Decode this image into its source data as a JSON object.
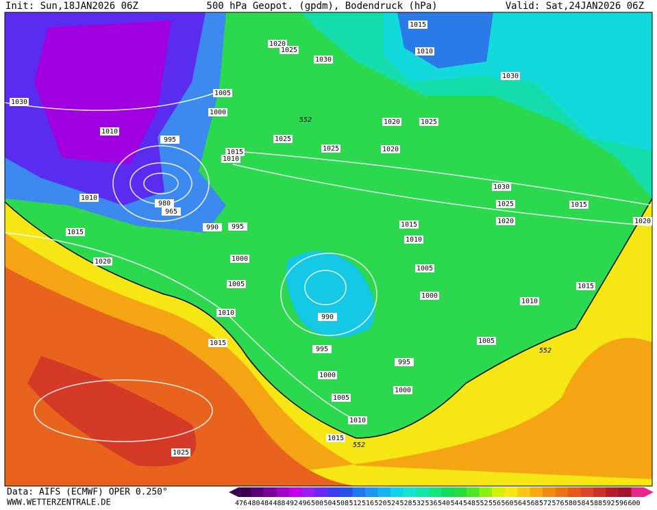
{
  "header": {
    "init": "Init: Sun,18JAN2026 06Z",
    "title": "500 hPa Geopot. (gpdm), Bodendruck (hPa)",
    "valid": "Valid: Sat,24JAN2026 06Z"
  },
  "isobar_labels": [
    "1015",
    "1020",
    "1025",
    "1010",
    "1030",
    "1030",
    "1030",
    "1005",
    "1000",
    "1010",
    "995",
    "1025",
    "1020",
    "1025",
    "1025",
    "1020",
    "1015",
    "1010",
    "1030",
    "1010",
    "980",
    "965",
    "1025",
    "1015",
    "990",
    "995",
    "1015",
    "1020",
    "1020",
    "1015",
    "1010",
    "1000",
    "1020",
    "1005",
    "1005",
    "1015",
    "1000",
    "1010",
    "1010",
    "990",
    "1015",
    "1005",
    "995",
    "995",
    "1000",
    "1000",
    "1005",
    "1010",
    "1015",
    "1025"
  ],
  "contour_labels": [
    "552",
    "552",
    "552"
  ],
  "footer": {
    "source": "Data: AIFS (ECMWF) OPER 0.250°",
    "site": "WWW.WETTERZENTRALE.DE"
  },
  "colorbar": {
    "values": [
      476,
      480,
      484,
      488,
      492,
      496,
      500,
      504,
      508,
      512,
      516,
      520,
      524,
      528,
      532,
      536,
      540,
      544,
      548,
      552,
      556,
      560,
      564,
      568,
      572,
      576,
      580,
      584,
      588,
      592,
      596,
      600
    ],
    "colors": [
      "#3c0050",
      "#5a0078",
      "#7a009e",
      "#a000c8",
      "#c000e6",
      "#9a1ef0",
      "#6a28f0",
      "#3c3cf0",
      "#2850e6",
      "#1e78f0",
      "#1e96f0",
      "#14b4f0",
      "#14d2eb",
      "#14e6d2",
      "#14e6aa",
      "#14e682",
      "#14dc5a",
      "#28dc3c",
      "#50e628",
      "#8cf014",
      "#d2f00a",
      "#fae614",
      "#fac814",
      "#f5aa14",
      "#f08c14",
      "#eb7314",
      "#e65a1e",
      "#dc4628",
      "#cd3228",
      "#b41e28",
      "#a0142d",
      "#e6288c"
    ]
  }
}
